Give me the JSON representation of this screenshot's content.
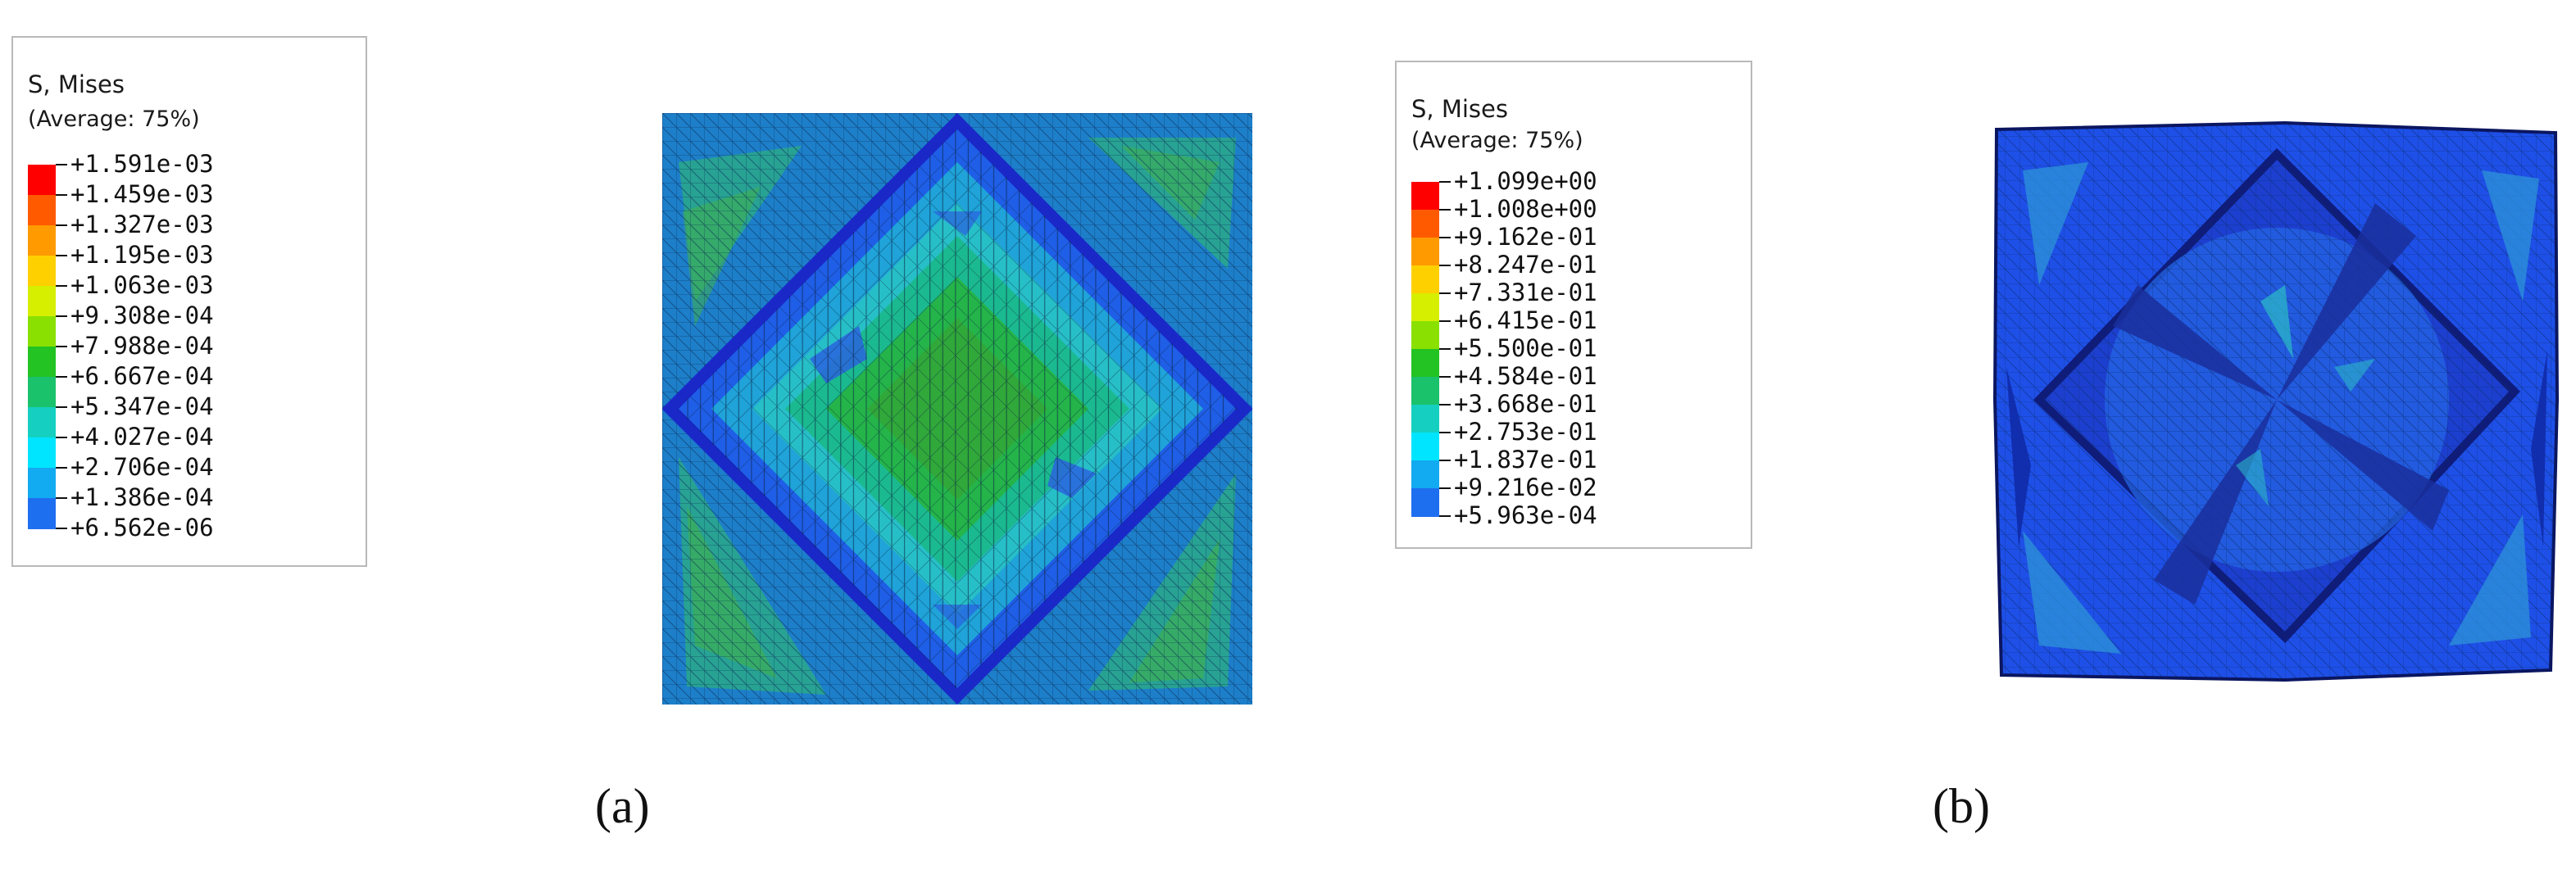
{
  "panel_a": {
    "label": "(a)",
    "legend": {
      "title": "S, Mises",
      "subtitle": "(Average: 75%)",
      "values": [
        "+1.591e-03",
        "+1.459e-03",
        "+1.327e-03",
        "+1.195e-03",
        "+1.063e-03",
        "+9.308e-04",
        "+7.988e-04",
        "+6.667e-04",
        "+5.347e-04",
        "+4.027e-04",
        "+2.706e-04",
        "+1.386e-04",
        "+6.562e-06"
      ]
    }
  },
  "panel_b": {
    "label": "(b)",
    "legend": {
      "title": "S, Mises",
      "subtitle": "(Average: 75%)",
      "values": [
        "+1.099e+00",
        "+1.008e+00",
        "+9.162e-01",
        "+8.247e-01",
        "+7.331e-01",
        "+6.415e-01",
        "+5.500e-01",
        "+4.584e-01",
        "+3.668e-01",
        "+2.753e-01",
        "+1.837e-01",
        "+9.216e-02",
        "+5.963e-04"
      ]
    }
  },
  "colors": {
    "contour_bands": [
      "#ff0000",
      "#ff5a00",
      "#ff9a00",
      "#ffd000",
      "#d6ee00",
      "#8ae000",
      "#22c322",
      "#1ac26b",
      "#15d0c0",
      "#00e5ff",
      "#12aaf0",
      "#1e6ef0",
      "#0a14ff"
    ]
  }
}
